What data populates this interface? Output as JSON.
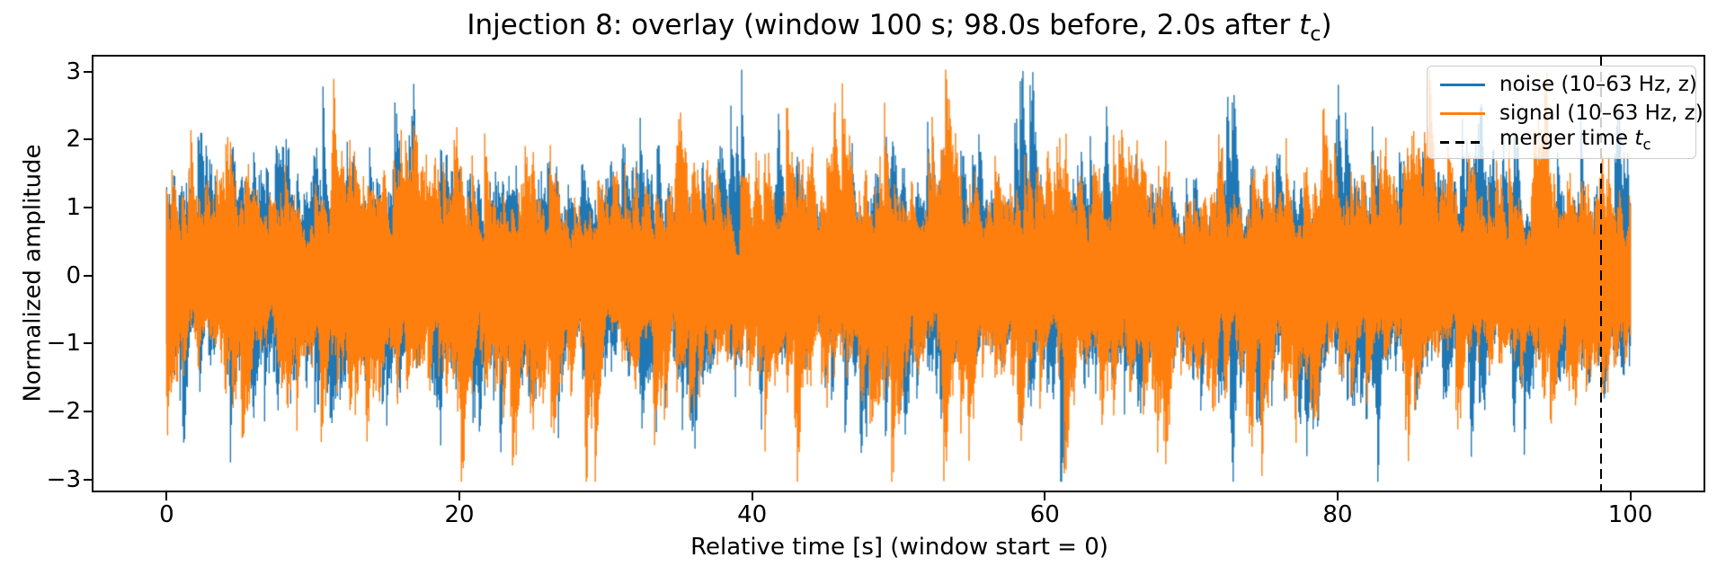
{
  "figure": {
    "title": {
      "text_before_tc": "Injection 8: overlay (window 100 s; 98.0s before, 2.0s after ",
      "tc_var": "t",
      "tc_sub": "c",
      "text_after_tc": ")"
    },
    "axes": {
      "xlabel": "Relative time [s] (window start = 0)",
      "ylabel": "Normalized amplitude"
    },
    "legend": {
      "items": [
        {
          "label": "noise (10–63 Hz, z)"
        },
        {
          "label": "signal (10–63 Hz, z)"
        },
        {
          "label_before_tc": "merger time ",
          "tc_var": "t",
          "tc_sub": "c"
        }
      ]
    }
  },
  "chart_data": {
    "type": "line",
    "title": "Injection 8: overlay (window 100 s; 98.0s before, 2.0s after t_c)",
    "xlabel": "Relative time [s] (window start = 0)",
    "ylabel": "Normalized amplitude",
    "xlim": [
      -5,
      105
    ],
    "ylim": [
      -3.16,
      3.22
    ],
    "xticks": [
      0,
      20,
      40,
      60,
      80,
      100
    ],
    "yticks": [
      3,
      2,
      1,
      0,
      -1,
      -2,
      -3
    ],
    "grid": false,
    "legend_position": "upper right",
    "x_data_range_s": [
      0,
      100
    ],
    "merger_time_s": 98.0,
    "series": [
      {
        "name": "noise (10–63 Hz, z)",
        "color": "#1f77b4",
        "kind": "band-passed z-scored noise",
        "band_hz": [
          10,
          63
        ],
        "typical_envelope": 1.3,
        "approx_peak_amplitude": 2.95,
        "seed": 81
      },
      {
        "name": "signal (10–63 Hz, z)",
        "color": "#ff7f0e",
        "kind": "band-passed z-scored noise+signal",
        "band_hz": [
          10,
          63
        ],
        "typical_envelope": 1.3,
        "approx_peak_amplitude": 2.97,
        "seed": 82
      }
    ],
    "merger_line": {
      "x": 98.0,
      "color": "#000000",
      "style": "dashed",
      "label": "merger time t_c"
    },
    "render": {
      "columns": 1630,
      "ar_rho": 0.78,
      "innov_base": 0.06,
      "innov_scale": 1.19,
      "jitter": 0.16,
      "min_amp": 0.3,
      "max_amp": 3.03
    }
  }
}
